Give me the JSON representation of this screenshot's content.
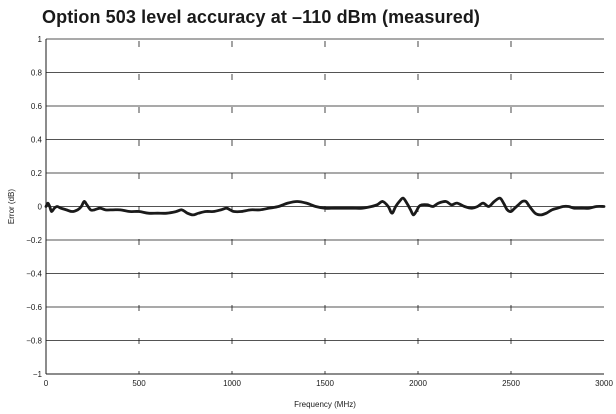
{
  "chart_data": {
    "type": "line",
    "title": "Option 503 level accuracy at –110 dBm (measured)",
    "xlabel": "Frequency (MHz)",
    "ylabel": "Error (dB)",
    "xlim": [
      0,
      3000
    ],
    "ylim": [
      -1,
      1
    ],
    "x_ticks": [
      0,
      500,
      1000,
      1500,
      2000,
      2500,
      3000
    ],
    "x_tick_labels": [
      "0",
      "500",
      "1000",
      "1500",
      "2000",
      "2500",
      "3000"
    ],
    "y_ticks": [
      1,
      0.8,
      0.6,
      0.4,
      0.2,
      0,
      -0.2,
      -0.4,
      -0.6,
      -0.8,
      -1
    ],
    "y_tick_labels": [
      "1",
      "0.8",
      "0.6",
      "0.4",
      "0.2",
      "0",
      "−0.2",
      "−0.4",
      "−0.6",
      "−0.8",
      "−1"
    ],
    "grid": {
      "horizontal": "solid",
      "vertical": "dashed"
    },
    "line_color": "#1a1a1a",
    "series": [
      {
        "x": [
          0,
          10,
          20,
          30,
          45,
          60,
          80,
          110,
          140,
          170,
          190,
          205,
          220,
          240,
          260,
          290,
          320,
          360,
          400,
          450,
          500,
          550,
          600,
          650,
          700,
          730,
          760,
          790,
          820,
          860,
          900,
          940,
          970,
          990,
          1010,
          1050,
          1100,
          1150,
          1200,
          1250,
          1300,
          1350,
          1400,
          1450,
          1500,
          1550,
          1600,
          1650,
          1700,
          1750,
          1780,
          1810,
          1840,
          1860,
          1880,
          1900,
          1920,
          1940,
          1960,
          1975,
          1990,
          2005,
          2020,
          2050,
          2080,
          2110,
          2150,
          2180,
          2210,
          2250,
          2290,
          2320,
          2350,
          2380,
          2410,
          2440,
          2460,
          2480,
          2500,
          2520,
          2540,
          2560,
          2580,
          2600,
          2630,
          2660,
          2690,
          2720,
          2750,
          2780,
          2810,
          2840,
          2880,
          2920,
          2960,
          3000
        ],
        "y": [
          0.0,
          0.02,
          0.0,
          -0.03,
          -0.01,
          0.0,
          -0.01,
          -0.02,
          -0.03,
          -0.02,
          0.0,
          0.03,
          0.01,
          -0.02,
          -0.02,
          -0.01,
          -0.02,
          -0.02,
          -0.02,
          -0.03,
          -0.03,
          -0.04,
          -0.04,
          -0.04,
          -0.03,
          -0.02,
          -0.04,
          -0.05,
          -0.04,
          -0.03,
          -0.03,
          -0.02,
          -0.01,
          -0.02,
          -0.03,
          -0.03,
          -0.02,
          -0.02,
          -0.01,
          0.0,
          0.02,
          0.03,
          0.02,
          0.0,
          -0.01,
          -0.01,
          -0.01,
          -0.01,
          -0.01,
          0.0,
          0.01,
          0.03,
          0.0,
          -0.04,
          0.0,
          0.03,
          0.05,
          0.02,
          -0.02,
          -0.05,
          -0.03,
          0.0,
          0.01,
          0.01,
          0.0,
          0.02,
          0.03,
          0.01,
          0.02,
          0.0,
          -0.01,
          0.0,
          0.02,
          0.0,
          0.03,
          0.05,
          0.02,
          -0.02,
          -0.03,
          -0.01,
          0.01,
          0.03,
          0.03,
          0.0,
          -0.04,
          -0.05,
          -0.04,
          -0.02,
          -0.01,
          0.0,
          0.0,
          -0.01,
          -0.01,
          -0.01,
          0.0,
          0.0
        ]
      }
    ]
  }
}
